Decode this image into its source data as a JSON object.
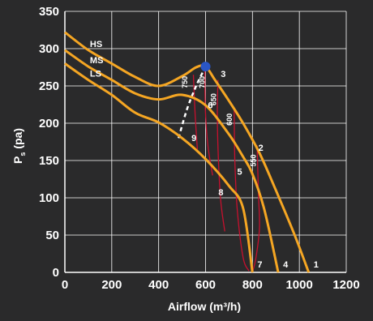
{
  "chart_data": {
    "type": "line",
    "xlabel": "Airflow (m³/h)",
    "ylabel_main": "P",
    "ylabel_sub": "s",
    "ylabel_unit": " (pa)",
    "xlim": [
      0,
      1200
    ],
    "ylim": [
      0,
      350
    ],
    "x_ticks": [
      "0",
      "200",
      "400",
      "600",
      "800",
      "1000",
      "1200"
    ],
    "y_ticks": [
      "0",
      "50",
      "100",
      "150",
      "200",
      "250",
      "300",
      "350"
    ],
    "grid": true,
    "colors": {
      "background": "#2a2a2b",
      "curve": "#f5a623",
      "iso": "#c8102e",
      "marker": "#2a56c6",
      "grid": "#ffffff",
      "text": "#ffffff"
    },
    "series": [
      {
        "name": "HS",
        "points": [
          [
            0,
            322
          ],
          [
            100,
            298
          ],
          [
            200,
            280
          ],
          [
            300,
            262
          ],
          [
            400,
            250
          ],
          [
            500,
            263
          ],
          [
            560,
            275
          ],
          [
            600,
            276
          ],
          [
            640,
            258
          ],
          [
            700,
            230
          ],
          [
            760,
            200
          ],
          [
            830,
            160
          ],
          [
            900,
            110
          ],
          [
            980,
            50
          ],
          [
            1040,
            0
          ]
        ],
        "end_label": "1"
      },
      {
        "name": "MS",
        "points": [
          [
            0,
            298
          ],
          [
            100,
            276
          ],
          [
            200,
            258
          ],
          [
            300,
            240
          ],
          [
            400,
            232
          ],
          [
            500,
            238
          ],
          [
            600,
            224
          ],
          [
            700,
            185
          ],
          [
            760,
            155
          ],
          [
            800,
            132
          ],
          [
            850,
            85
          ],
          [
            910,
            0
          ]
        ],
        "end_label": "4"
      },
      {
        "name": "LS",
        "points": [
          [
            0,
            280
          ],
          [
            100,
            258
          ],
          [
            200,
            238
          ],
          [
            300,
            214
          ],
          [
            400,
            201
          ],
          [
            500,
            180
          ],
          [
            600,
            152
          ],
          [
            700,
            116
          ],
          [
            760,
            86
          ],
          [
            800,
            0
          ]
        ],
        "end_label": "7"
      }
    ],
    "operating_points": [
      {
        "label": "2",
        "x": 825,
        "y": 163
      },
      {
        "label": "3",
        "x": 665,
        "y": 262
      },
      {
        "label": "5",
        "x": 735,
        "y": 131
      },
      {
        "label": "6",
        "x": 610,
        "y": 220
      },
      {
        "label": "8",
        "x": 655,
        "y": 103
      },
      {
        "label": "9",
        "x": 540,
        "y": 176
      }
    ],
    "iso_lines": [
      {
        "label": "750",
        "points": [
          [
            548,
            265
          ],
          [
            555,
            215
          ],
          [
            565,
            165
          ]
        ],
        "label_at": [
          522,
          255
        ]
      },
      {
        "label": "700",
        "points": [
          [
            597,
            273
          ],
          [
            599,
            220
          ],
          [
            610,
            170
          ],
          [
            630,
            130
          ]
        ],
        "label_at": [
          597,
          255
        ]
      },
      {
        "label": "650",
        "points": [
          [
            653,
            258
          ],
          [
            650,
            210
          ],
          [
            655,
            150
          ],
          [
            665,
            95
          ],
          [
            682,
            55
          ]
        ],
        "label_at": [
          645,
          232
        ]
      },
      {
        "label": "600",
        "points": [
          [
            722,
            220
          ],
          [
            725,
            150
          ],
          [
            735,
            85
          ],
          [
            760,
            20
          ],
          [
            785,
            2
          ]
        ],
        "label_at": [
          713,
          205
        ]
      },
      {
        "label": "550",
        "points": [
          [
            820,
            170
          ],
          [
            825,
            110
          ],
          [
            830,
            60
          ],
          [
            815,
            20
          ],
          [
            800,
            0
          ]
        ],
        "label_at": [
          815,
          150
        ]
      }
    ],
    "max_pressure_line": [
      [
        485,
        180
      ],
      [
        520,
        218
      ],
      [
        560,
        250
      ],
      [
        600,
        276
      ]
    ],
    "marker": {
      "x": 600,
      "y": 276
    }
  }
}
